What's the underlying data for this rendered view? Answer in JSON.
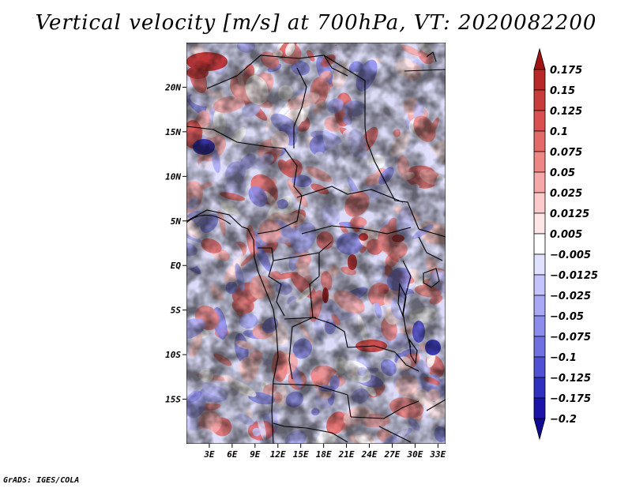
{
  "title": "Vertical velocity [m/s] at 700hPa, VT: 2020082200",
  "credit": "GrADS: IGES/COLA",
  "chart_data": {
    "type": "heatmap",
    "variable": "Vertical velocity",
    "units": "m/s",
    "level": "700hPa",
    "valid_time": "2020082200",
    "lon_range": [
      0,
      34
    ],
    "lat_range": [
      -20,
      25
    ],
    "lat_ticks": [
      {
        "label": "20N",
        "value": 20
      },
      {
        "label": "15N",
        "value": 15
      },
      {
        "label": "10N",
        "value": 10
      },
      {
        "label": "5N",
        "value": 5
      },
      {
        "label": "EQ",
        "value": 0
      },
      {
        "label": "5S",
        "value": -5
      },
      {
        "label": "10S",
        "value": -10
      },
      {
        "label": "15S",
        "value": -15
      }
    ],
    "lon_ticks": [
      {
        "label": "3E",
        "value": 3
      },
      {
        "label": "6E",
        "value": 6
      },
      {
        "label": "9E",
        "value": 9
      },
      {
        "label": "12E",
        "value": 12
      },
      {
        "label": "15E",
        "value": 15
      },
      {
        "label": "18E",
        "value": 18
      },
      {
        "label": "21E",
        "value": 21
      },
      {
        "label": "24E",
        "value": 24
      },
      {
        "label": "27E",
        "value": 27
      },
      {
        "label": "30E",
        "value": 30
      },
      {
        "label": "33E",
        "value": 33
      }
    ],
    "colorbar": {
      "labels": [
        "0.175",
        "0.15",
        "0.125",
        "0.1",
        "0.075",
        "0.05",
        "0.025",
        "0.0125",
        "0.005",
        "−0.005",
        "−0.0125",
        "−0.025",
        "−0.05",
        "−0.075",
        "−0.1",
        "−0.125",
        "−0.175",
        "−0.2"
      ],
      "colors": [
        "#a01414",
        "#b82828",
        "#c83c3c",
        "#d85050",
        "#e46a6a",
        "#ee8686",
        "#f6a8a8",
        "#fccaca",
        "#ffe6e6",
        "#ffffff",
        "#e0e0ff",
        "#c4c4fc",
        "#a8a8f4",
        "#8c8cec",
        "#7070e0",
        "#5050d4",
        "#3030c0",
        "#1c14a8",
        "#100a90"
      ]
    }
  }
}
